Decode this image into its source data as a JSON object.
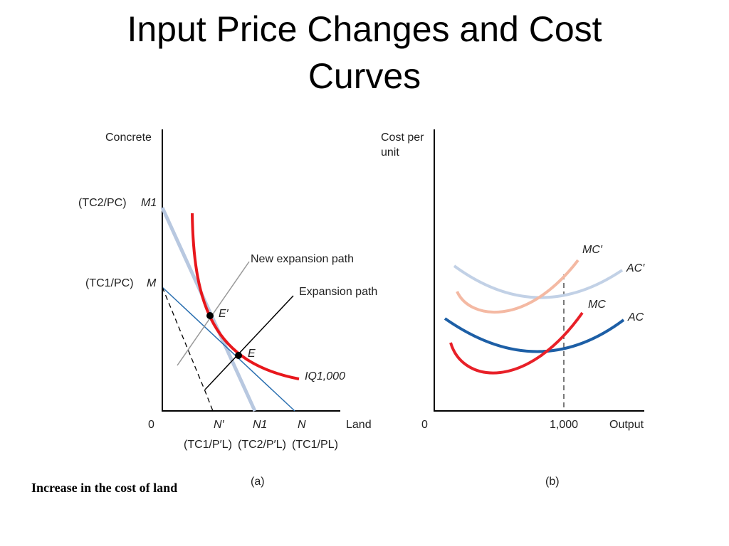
{
  "slide": {
    "title_line1": "Input Price Changes and Cost",
    "title_line2": "Curves",
    "caption": "Increase in the cost of land"
  },
  "panel_a": {
    "label": "(a)",
    "y_axis_label": "Concrete",
    "x_axis_label": "Land",
    "origin": "0",
    "y_marks": {
      "m1_intercept": "(TC2/PC)",
      "m1_label": "M1",
      "m_intercept": "(TC1/PC)",
      "m_label": "M"
    },
    "x_marks": {
      "n_prime": "N′",
      "n1": "N1",
      "n": "N",
      "n_prime_value": "(TC1/P′L)",
      "n1_value": "(TC2/P′L)",
      "n_value": "(TC1/PL)"
    },
    "curves": {
      "new_expansion_path": "New expansion path",
      "expansion_path": "Expansion path",
      "isoquant": "IQ1,000",
      "point_e_prime": "E′",
      "point_e": "E"
    }
  },
  "panel_b": {
    "label": "(b)",
    "y_axis_label_line1": "Cost per",
    "y_axis_label_line2": "unit",
    "x_axis_label": "Output",
    "origin": "0",
    "output_tick": "1,000",
    "curves": {
      "mc_prime": "MC′",
      "ac_prime": "AC′",
      "mc": "MC",
      "ac": "AC"
    }
  },
  "colors": {
    "isoquant": "#e8171c",
    "mc": "#e82028",
    "ac": "#1d5fa6",
    "mc_prime": "#f4b9a3",
    "ac_prime": "#c2d1e6",
    "new_budget_line": "#b8c8e0",
    "budget_line": "#2a6fb0",
    "axis": "#000000",
    "new_expansion_path": "#999999"
  }
}
